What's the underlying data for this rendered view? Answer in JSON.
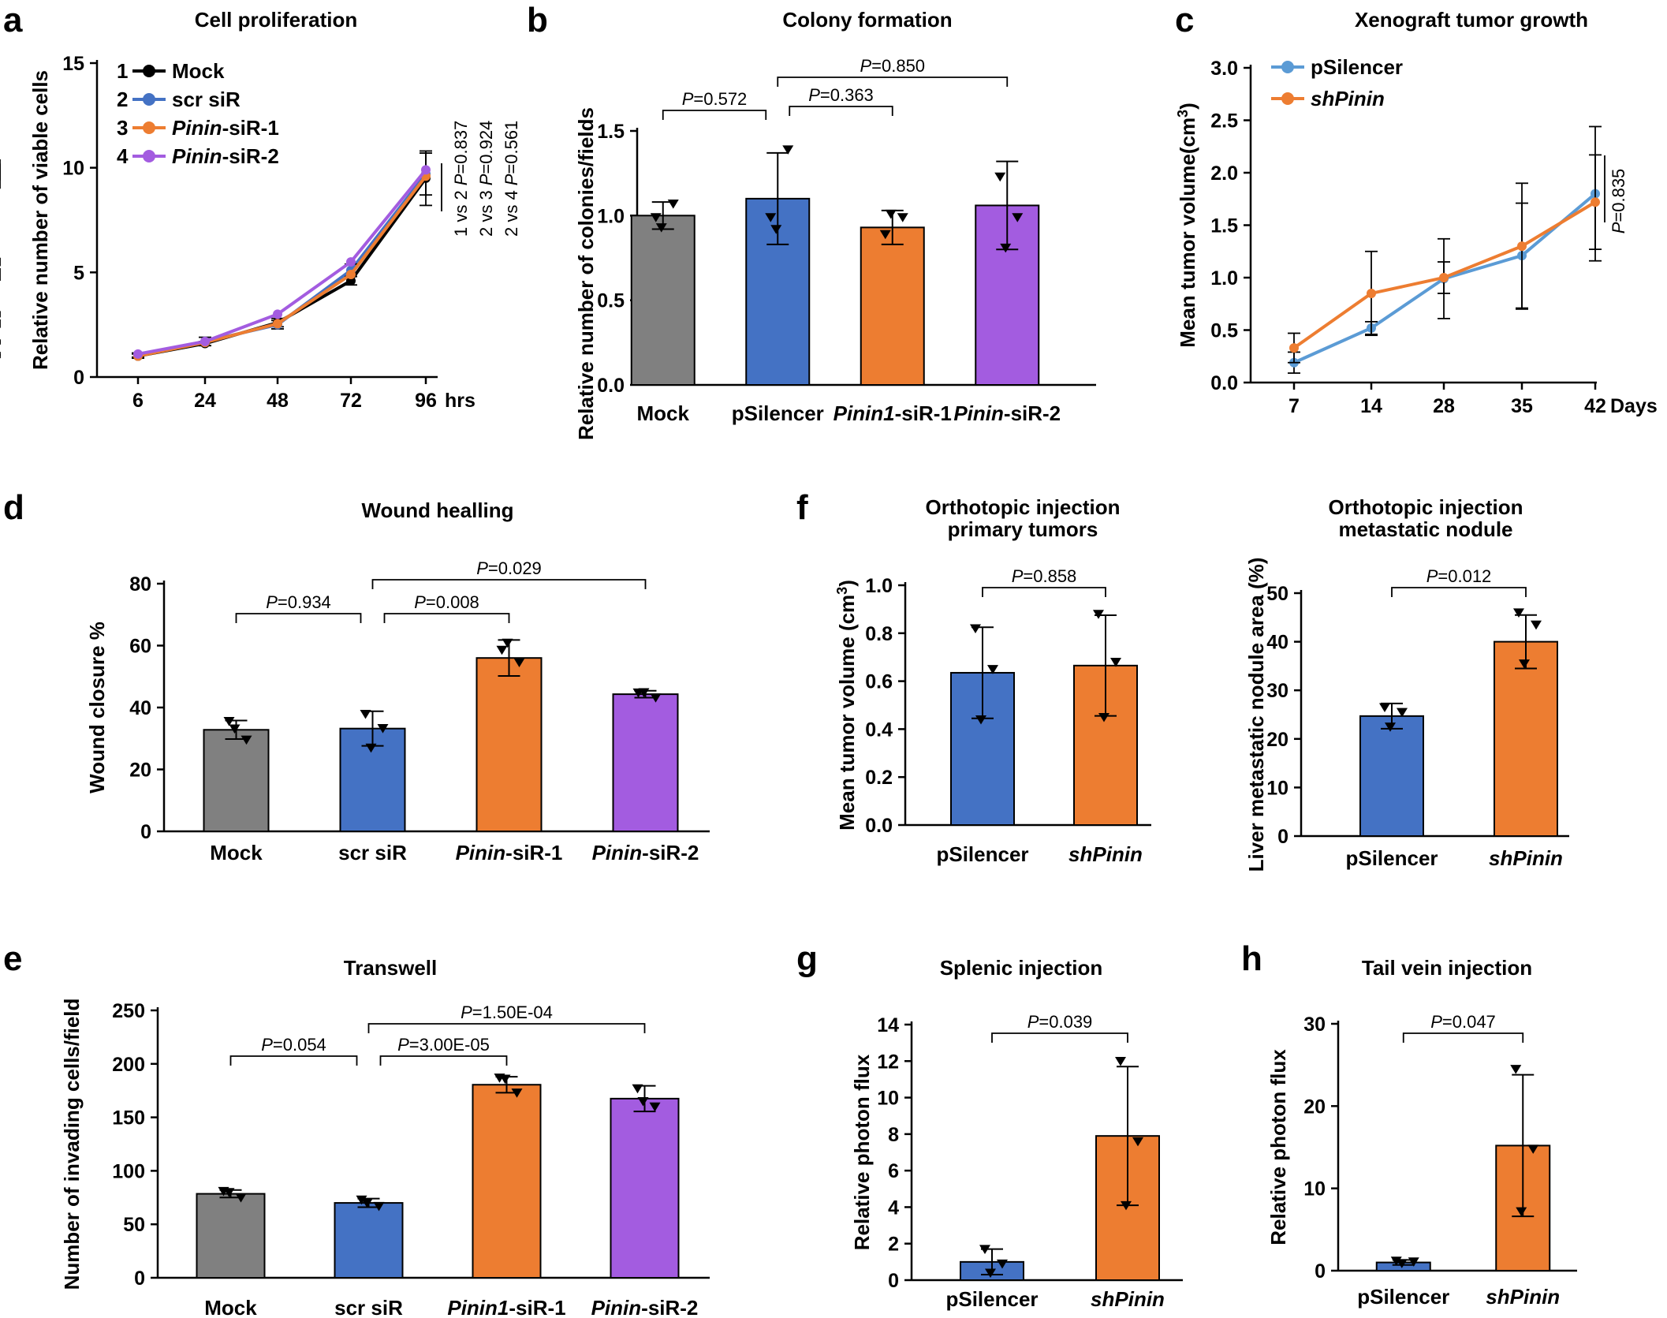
{
  "chart_data": [
    {
      "panel": "a",
      "type": "line",
      "title": "Cell proliferation",
      "ylabel": "Relative number of viable cells",
      "xlabel": "",
      "ylim": [
        0,
        15
      ],
      "yticks": [
        "0",
        "5",
        "10",
        "15"
      ],
      "categories": [
        "6",
        "24",
        "48",
        "72",
        "96"
      ],
      "x_unit": "hrs",
      "series": [
        {
          "num": "1",
          "name": "Mock",
          "color": "#000000",
          "values": [
            1.0,
            1.6,
            2.6,
            4.6,
            9.5
          ],
          "err": [
            0.1,
            0.1,
            0.2,
            0.2,
            1.3
          ]
        },
        {
          "num": "2",
          "name": "scr siR",
          "color": "#4472C4",
          "values": [
            1.05,
            1.7,
            2.5,
            5.1,
            9.7
          ],
          "err": [
            0.1,
            0.2,
            0.2,
            0.3,
            1.0
          ]
        },
        {
          "num": "3",
          "name": "Pinin-siR-1",
          "italic": "Pinin",
          "suffix": "-siR-1",
          "color": "#ED7D31",
          "values": [
            1.0,
            1.65,
            2.55,
            4.9,
            9.6
          ],
          "err": [
            0.1,
            0.1,
            0.2,
            0.3,
            0.6
          ]
        },
        {
          "num": "4",
          "name": "Pinin-siR-2",
          "italic": "Pinin",
          "suffix": "-siR-2",
          "color": "#A35CE0",
          "values": [
            1.1,
            1.7,
            3.0,
            5.5,
            9.9
          ],
          "err": [
            0.1,
            0.1,
            0.15,
            0.2,
            0.5
          ]
        }
      ],
      "pvalues": [
        {
          "cmp": "1 vs 2",
          "label": "P=0.837"
        },
        {
          "cmp": "2 vs 3",
          "label": "P=0.924"
        },
        {
          "cmp": "2 vs 4",
          "label": "P=0.561"
        }
      ]
    },
    {
      "panel": "b",
      "type": "bar",
      "title": "Colony formation",
      "ylabel": "Relative number of colonies/fields",
      "ylim": [
        0,
        1.5
      ],
      "yticks": [
        "0.0",
        "0.5",
        "1.0",
        "1.5"
      ],
      "categories": [
        "Mock",
        "pSilencer",
        "Pinin1-siR-1",
        "Pinin-siR-2"
      ],
      "cat_italic": [
        "",
        "",
        "Pinin1",
        "Pinin"
      ],
      "cat_suffix": [
        "",
        "",
        "-siR-1",
        "-siR-2"
      ],
      "values": [
        1.0,
        1.1,
        0.93,
        1.06
      ],
      "err": [
        0.08,
        0.27,
        0.1,
        0.26
      ],
      "points": [
        [
          0.99,
          1.07,
          0.93
        ],
        [
          0.99,
          1.39,
          0.92
        ],
        [
          0.89,
          0.99,
          1.01
        ],
        [
          1.23,
          0.99,
          0.81
        ]
      ],
      "colors": [
        "#808080",
        "#4472C4",
        "#ED7D31",
        "#A35CE0"
      ],
      "comparisons": [
        {
          "from": 0,
          "to": 1,
          "label": "P=0.572",
          "level": 0
        },
        {
          "from": 1,
          "to": 2,
          "label": "P=0.363",
          "level": 0
        },
        {
          "from": 1,
          "to": 3,
          "label": "P=0.850",
          "level": 1
        }
      ]
    },
    {
      "panel": "c",
      "type": "line",
      "title": "Xenograft tumor growth",
      "ylabel": "Mean tumor volume(cm³)",
      "ylim": [
        0,
        3.0
      ],
      "yticks": [
        "0.0",
        "0.5",
        "1.0",
        "1.5",
        "2.0",
        "2.5",
        "3.0"
      ],
      "categories": [
        "7",
        "14",
        "28",
        "35",
        "42"
      ],
      "x_unit": "Days",
      "series": [
        {
          "name": "pSilencer",
          "color": "#5B9BD5",
          "values": [
            0.19,
            0.52,
            0.99,
            1.21,
            1.8
          ],
          "err": [
            0.1,
            0.06,
            0.38,
            0.5,
            0.64
          ]
        },
        {
          "name": "shPinin",
          "italic": "shPinin",
          "color": "#ED7D31",
          "values": [
            0.33,
            0.85,
            1.0,
            1.3,
            1.72
          ],
          "err": [
            0.14,
            0.4,
            0.15,
            0.6,
            0.45
          ]
        }
      ],
      "pvalue": "P=0.835"
    },
    {
      "panel": "d",
      "type": "bar",
      "title": "Wound healling",
      "ylabel": "Wound closure %",
      "ylim": [
        0,
        80
      ],
      "yticks": [
        "0",
        "20",
        "40",
        "60",
        "80"
      ],
      "categories": [
        "Mock",
        "scr siR",
        "Pinin-siR-1",
        "Pinin-siR-2"
      ],
      "cat_italic": [
        "",
        "",
        "Pinin",
        "Pinin"
      ],
      "cat_suffix": [
        "",
        "",
        "-siR-1",
        "-siR-2"
      ],
      "values": [
        32.8,
        33.2,
        56.0,
        44.3
      ],
      "err": [
        3.0,
        5.6,
        5.8,
        1.1
      ],
      "points": [
        [
          35.6,
          29.6,
          33.2
        ],
        [
          37.9,
          33.3,
          27.0
        ],
        [
          58.6,
          54.6,
          60.9
        ],
        [
          44.8,
          43.2,
          44.9
        ]
      ],
      "colors": [
        "#808080",
        "#4472C4",
        "#ED7D31",
        "#A35CE0"
      ],
      "comparisons": [
        {
          "from": 0,
          "to": 1,
          "label": "P=0.934",
          "level": 0
        },
        {
          "from": 1,
          "to": 2,
          "label": "P=0.008",
          "level": 0
        },
        {
          "from": 1,
          "to": 3,
          "label": "P=0.029",
          "level": 1
        }
      ]
    },
    {
      "panel": "e",
      "type": "bar",
      "title": "Transwell",
      "ylabel": "Number of invading cells/field",
      "ylim": [
        0,
        250
      ],
      "yticks": [
        "0",
        "50",
        "100",
        "150",
        "200",
        "250"
      ],
      "categories": [
        "Mock",
        "scr siR",
        "Pinin1-siR-1",
        "Pinin-siR-2"
      ],
      "cat_italic": [
        "",
        "",
        "Pinin1",
        "Pinin"
      ],
      "cat_suffix": [
        "",
        "",
        "-siR-1",
        "-siR-2"
      ],
      "values": [
        78.5,
        70.0,
        180.5,
        167.5
      ],
      "err": [
        3.5,
        4.0,
        7.5,
        12.0
      ],
      "points": [
        [
          81.0,
          75.0,
          80.0
        ],
        [
          73.0,
          67.0,
          70.0
        ],
        [
          187.0,
          173.0,
          186.0
        ],
        [
          177.0,
          160.0,
          165.0
        ]
      ],
      "colors": [
        "#808080",
        "#4472C4",
        "#ED7D31",
        "#A35CE0"
      ],
      "comparisons": [
        {
          "from": 0,
          "to": 1,
          "label": "P=0.054",
          "level": 0
        },
        {
          "from": 1,
          "to": 2,
          "label": "P=3.00E-05",
          "level": 0
        },
        {
          "from": 1,
          "to": 3,
          "label": "P=1.50E-04",
          "level": 1
        }
      ]
    },
    {
      "panel": "f",
      "type": "bar",
      "title": "Orthotopic injection primary tumors",
      "title_lines": [
        "Orthotopic injection",
        "primary tumors"
      ],
      "ylabel": "Mean tumor volume (cm³)",
      "ylim": [
        0,
        1.0
      ],
      "yticks": [
        "0.0",
        "0.2",
        "0.4",
        "0.6",
        "0.8",
        "1.0"
      ],
      "categories": [
        "pSilencer",
        "shPinin"
      ],
      "cat_italic": [
        "",
        "shPinin"
      ],
      "cat_suffix": [
        "",
        ""
      ],
      "values": [
        0.635,
        0.665
      ],
      "err": [
        0.19,
        0.21
      ],
      "points": [
        [
          0.82,
          0.65,
          0.44
        ],
        [
          0.88,
          0.68,
          0.45
        ]
      ],
      "colors": [
        "#4472C4",
        "#ED7D31"
      ],
      "comparisons": [
        {
          "from": 0,
          "to": 1,
          "label": "P=0.858",
          "level": 0
        }
      ]
    },
    {
      "panel": "",
      "type": "bar",
      "title": "Orthotopic injection metastatic nodule",
      "title_lines": [
        "Orthotopic injection",
        "metastatic nodule"
      ],
      "ylabel": "Liver metastatic nodule area (%)",
      "ylim": [
        0,
        50
      ],
      "yticks": [
        "0",
        "10",
        "20",
        "30",
        "40",
        "50"
      ],
      "categories": [
        "pSilencer",
        "shPinin"
      ],
      "cat_italic": [
        "",
        "shPinin"
      ],
      "cat_suffix": [
        "",
        ""
      ],
      "values": [
        24.7,
        40.0
      ],
      "err": [
        2.6,
        5.5
      ],
      "points": [
        [
          26.5,
          25.5,
          22.5
        ],
        [
          46.0,
          43.5,
          35.5
        ]
      ],
      "colors": [
        "#4472C4",
        "#ED7D31"
      ],
      "comparisons": [
        {
          "from": 0,
          "to": 1,
          "label": "P=0.012",
          "level": 0
        }
      ]
    },
    {
      "panel": "g",
      "type": "bar",
      "title": "Splenic injection",
      "ylabel": "Relative photon flux",
      "ylim": [
        0,
        14
      ],
      "yticks": [
        "0",
        "2",
        "4",
        "6",
        "8",
        "10",
        "12",
        "14"
      ],
      "categories": [
        "pSilencer",
        "shPinin"
      ],
      "cat_italic": [
        "",
        "shPinin"
      ],
      "cat_suffix": [
        "",
        ""
      ],
      "values": [
        1.0,
        7.9
      ],
      "err": [
        0.7,
        3.8
      ],
      "points": [
        [
          1.7,
          0.9,
          0.4
        ],
        [
          12.0,
          7.6,
          4.1
        ]
      ],
      "colors": [
        "#4472C4",
        "#ED7D31"
      ],
      "comparisons": [
        {
          "from": 0,
          "to": 1,
          "label": "P=0.039",
          "level": 0
        }
      ]
    },
    {
      "panel": "h",
      "type": "bar",
      "title": "Tail vein injection",
      "ylabel": "Relative photon flux",
      "ylim": [
        0,
        30
      ],
      "yticks": [
        "0",
        "10",
        "20",
        "30"
      ],
      "categories": [
        "pSilencer",
        "shPinin"
      ],
      "cat_italic": [
        "",
        "shPinin"
      ],
      "cat_suffix": [
        "",
        ""
      ],
      "values": [
        1.0,
        15.2
      ],
      "err": [
        0.3,
        8.6
      ],
      "points": [
        [
          1.2,
          1.1,
          0.9
        ],
        [
          24.5,
          14.8,
          7.2
        ]
      ],
      "colors": [
        "#4472C4",
        "#ED7D31"
      ],
      "comparisons": [
        {
          "from": 0,
          "to": 1,
          "label": "P=0.047",
          "level": 0
        }
      ]
    }
  ]
}
